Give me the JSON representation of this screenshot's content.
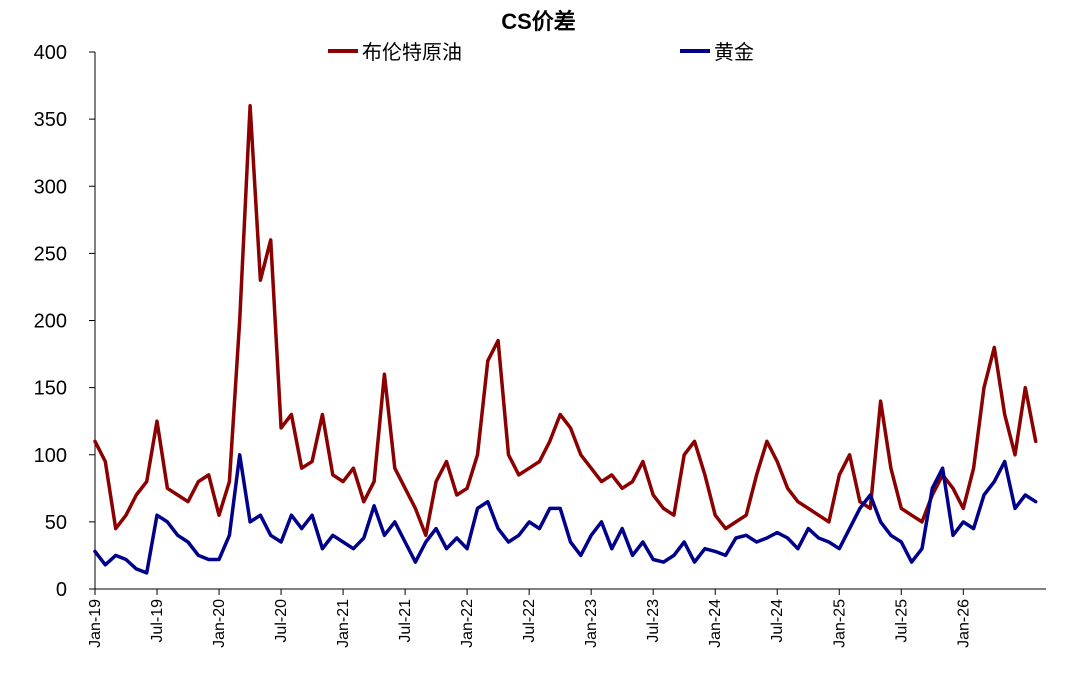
{
  "chart_data": {
    "type": "line",
    "title": "CS价差",
    "ylim": [
      0,
      400
    ],
    "yticks": [
      0,
      50,
      100,
      150,
      200,
      250,
      300,
      350,
      400
    ],
    "xticks": [
      "Jan-19",
      "Jul-19",
      "Jan-20",
      "Jul-20",
      "Jan-21",
      "Jul-21",
      "Jan-22",
      "Jul-22",
      "Jan-23",
      "Jul-23",
      "Jan-24",
      "Jul-24",
      "Jan-25",
      "Jul-25",
      "Jan-26"
    ],
    "x_range": [
      "2019-01",
      "2026-09"
    ],
    "legend_position": "top",
    "series": [
      {
        "name": "布伦特原油",
        "color": "#8B0000",
        "x": [
          "2019-01",
          "2019-02",
          "2019-03",
          "2019-04",
          "2019-05",
          "2019-06",
          "2019-07",
          "2019-08",
          "2019-09",
          "2019-10",
          "2019-11",
          "2019-12",
          "2020-01",
          "2020-02",
          "2020-03",
          "2020-04",
          "2020-05",
          "2020-06",
          "2020-07",
          "2020-08",
          "2020-09",
          "2020-10",
          "2020-11",
          "2020-12",
          "2021-01",
          "2021-02",
          "2021-03",
          "2021-04",
          "2021-05",
          "2021-06",
          "2021-07",
          "2021-08",
          "2021-09",
          "2021-10",
          "2021-11",
          "2021-12",
          "2022-01",
          "2022-02",
          "2022-03",
          "2022-04",
          "2022-05",
          "2022-06",
          "2022-07",
          "2022-08",
          "2022-09",
          "2022-10",
          "2022-11",
          "2022-12",
          "2023-01",
          "2023-02",
          "2023-03",
          "2023-04",
          "2023-05",
          "2023-06",
          "2023-07",
          "2023-08",
          "2023-09",
          "2023-10",
          "2023-11",
          "2023-12",
          "2024-01",
          "2024-02",
          "2024-03",
          "2024-04",
          "2024-05",
          "2024-06",
          "2024-07",
          "2024-08",
          "2024-09",
          "2024-10",
          "2024-11",
          "2024-12",
          "2025-01",
          "2025-02",
          "2025-03",
          "2025-04",
          "2025-05",
          "2025-06",
          "2025-07",
          "2025-08",
          "2025-09",
          "2025-10",
          "2025-11",
          "2025-12",
          "2026-01",
          "2026-02",
          "2026-03",
          "2026-04",
          "2026-05",
          "2026-06",
          "2026-07",
          "2026-08"
        ],
        "values": [
          110,
          95,
          45,
          55,
          70,
          80,
          125,
          75,
          70,
          65,
          80,
          85,
          55,
          80,
          200,
          360,
          230,
          260,
          120,
          130,
          90,
          95,
          130,
          85,
          80,
          90,
          65,
          80,
          160,
          90,
          75,
          60,
          40,
          80,
          95,
          70,
          75,
          100,
          170,
          185,
          100,
          85,
          90,
          95,
          110,
          130,
          120,
          100,
          90,
          80,
          85,
          75,
          80,
          95,
          70,
          60,
          55,
          100,
          110,
          85,
          55,
          45,
          50,
          55,
          85,
          110,
          95,
          75,
          65,
          60,
          55,
          50,
          85,
          100,
          65,
          60,
          140,
          90,
          60,
          55,
          50,
          70,
          85,
          75,
          60,
          90,
          150,
          180,
          130,
          100,
          150,
          110
        ]
      },
      {
        "name": "黄金",
        "color": "#00008B",
        "x": [
          "2019-01",
          "2019-02",
          "2019-03",
          "2019-04",
          "2019-05",
          "2019-06",
          "2019-07",
          "2019-08",
          "2019-09",
          "2019-10",
          "2019-11",
          "2019-12",
          "2020-01",
          "2020-02",
          "2020-03",
          "2020-04",
          "2020-05",
          "2020-06",
          "2020-07",
          "2020-08",
          "2020-09",
          "2020-10",
          "2020-11",
          "2020-12",
          "2021-01",
          "2021-02",
          "2021-03",
          "2021-04",
          "2021-05",
          "2021-06",
          "2021-07",
          "2021-08",
          "2021-09",
          "2021-10",
          "2021-11",
          "2021-12",
          "2022-01",
          "2022-02",
          "2022-03",
          "2022-04",
          "2022-05",
          "2022-06",
          "2022-07",
          "2022-08",
          "2022-09",
          "2022-10",
          "2022-11",
          "2022-12",
          "2023-01",
          "2023-02",
          "2023-03",
          "2023-04",
          "2023-05",
          "2023-06",
          "2023-07",
          "2023-08",
          "2023-09",
          "2023-10",
          "2023-11",
          "2023-12",
          "2024-01",
          "2024-02",
          "2024-03",
          "2024-04",
          "2024-05",
          "2024-06",
          "2024-07",
          "2024-08",
          "2024-09",
          "2024-10",
          "2024-11",
          "2024-12",
          "2025-01",
          "2025-02",
          "2025-03",
          "2025-04",
          "2025-05",
          "2025-06",
          "2025-07",
          "2025-08",
          "2025-09",
          "2025-10",
          "2025-11",
          "2025-12",
          "2026-01",
          "2026-02",
          "2026-03",
          "2026-04",
          "2026-05",
          "2026-06",
          "2026-07",
          "2026-08"
        ],
        "values": [
          28,
          18,
          25,
          22,
          15,
          12,
          55,
          50,
          40,
          35,
          25,
          22,
          22,
          40,
          100,
          50,
          55,
          40,
          35,
          55,
          45,
          55,
          30,
          40,
          35,
          30,
          38,
          62,
          40,
          50,
          35,
          20,
          35,
          45,
          30,
          38,
          30,
          60,
          65,
          45,
          35,
          40,
          50,
          45,
          60,
          60,
          35,
          25,
          40,
          50,
          30,
          45,
          25,
          35,
          22,
          20,
          25,
          35,
          20,
          30,
          28,
          25,
          38,
          40,
          35,
          38,
          42,
          38,
          30,
          45,
          38,
          35,
          30,
          45,
          60,
          70,
          50,
          40,
          35,
          20,
          30,
          75,
          90,
          40,
          50,
          45,
          70,
          80,
          95,
          60,
          70,
          65
        ]
      }
    ]
  }
}
